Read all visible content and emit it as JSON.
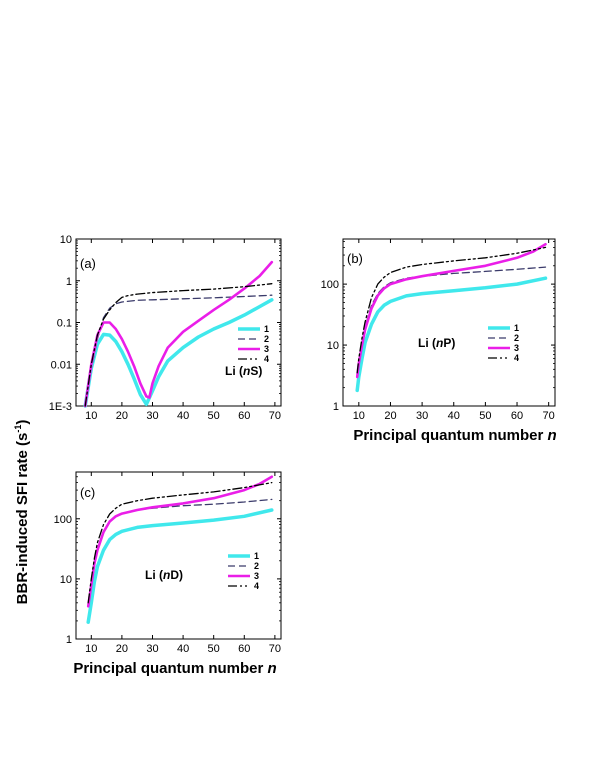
{
  "ylabel": {
    "main": "BBR-induced SFI rate (s",
    "sup": "-1",
    "tail": ")"
  },
  "series_styles": [
    {
      "name": "1",
      "color": "#40e8ec",
      "width": 3.5,
      "dash": ""
    },
    {
      "name": "2",
      "color": "#3a3a6a",
      "width": 1.3,
      "dash": "7,4"
    },
    {
      "name": "3",
      "color": "#ea1ee8",
      "width": 2.6,
      "dash": ""
    },
    {
      "name": "4",
      "color": "#000000",
      "width": 1.3,
      "dash": "9,3,2,3,2,3"
    }
  ],
  "chart_data": [
    {
      "id": "a",
      "type": "line",
      "label": "(a)",
      "species": {
        "prefix": "Li (",
        "italic": "n",
        "suffix": "S)"
      },
      "x_scale": "linear",
      "y_scale": "log",
      "xlim": [
        5,
        72
      ],
      "ylim": [
        0.001,
        10
      ],
      "xticks": [
        10,
        20,
        30,
        40,
        50,
        60,
        70
      ],
      "yticks": [
        0.001,
        0.01,
        0.1,
        1,
        10
      ],
      "ytick_labels": [
        "1E-3",
        "0.01",
        "0.1",
        "1",
        "10"
      ],
      "xlabel": {
        "text": "",
        "italic": ""
      },
      "series": [
        {
          "name": "1",
          "x": [
            8,
            10,
            12,
            14,
            16,
            18,
            20,
            22,
            24,
            26,
            28,
            30,
            32,
            35,
            40,
            45,
            50,
            55,
            60,
            65,
            69
          ],
          "y": [
            0.001,
            0.008,
            0.03,
            0.052,
            0.05,
            0.035,
            0.02,
            0.01,
            0.0045,
            0.0019,
            0.0011,
            0.0023,
            0.005,
            0.012,
            0.025,
            0.045,
            0.07,
            0.1,
            0.15,
            0.24,
            0.35
          ]
        },
        {
          "name": "2",
          "x": [
            8,
            10,
            12,
            14,
            16,
            18,
            20,
            25,
            30,
            40,
            50,
            60,
            69
          ],
          "y": [
            0.001,
            0.008,
            0.04,
            0.13,
            0.22,
            0.28,
            0.31,
            0.34,
            0.35,
            0.37,
            0.39,
            0.42,
            0.45
          ]
        },
        {
          "name": "3",
          "x": [
            8,
            10,
            12,
            14,
            16,
            18,
            20,
            22,
            24,
            26,
            28,
            29,
            30,
            32,
            35,
            40,
            45,
            50,
            55,
            60,
            65,
            69
          ],
          "y": [
            0.001,
            0.01,
            0.05,
            0.1,
            0.1,
            0.07,
            0.04,
            0.02,
            0.009,
            0.0035,
            0.0017,
            0.0016,
            0.0035,
            0.009,
            0.025,
            0.06,
            0.11,
            0.2,
            0.35,
            0.65,
            1.3,
            2.8
          ]
        },
        {
          "name": "4",
          "x": [
            8,
            10,
            12,
            14,
            16,
            18,
            20,
            22,
            25,
            30,
            40,
            50,
            60,
            69
          ],
          "y": [
            0.001,
            0.01,
            0.05,
            0.12,
            0.2,
            0.3,
            0.4,
            0.44,
            0.48,
            0.52,
            0.58,
            0.63,
            0.72,
            0.85
          ]
        }
      ]
    },
    {
      "id": "b",
      "type": "line",
      "label": "(b)",
      "species": {
        "prefix": "Li (",
        "italic": "n",
        "suffix": "P)"
      },
      "x_scale": "linear",
      "y_scale": "log",
      "xlim": [
        5,
        72
      ],
      "ylim": [
        1,
        550
      ],
      "xticks": [
        10,
        20,
        30,
        40,
        50,
        60,
        70
      ],
      "yticks": [
        1,
        10,
        100
      ],
      "ytick_labels": [
        "1",
        "10",
        "100"
      ],
      "xlabel": {
        "text": "Principal quantum number ",
        "italic": "n"
      },
      "series": [
        {
          "name": "1",
          "x": [
            9.5,
            10,
            11,
            12,
            14,
            16,
            18,
            20,
            25,
            30,
            40,
            50,
            60,
            69
          ],
          "y": [
            1.8,
            3,
            6,
            11,
            22,
            35,
            45,
            52,
            64,
            70,
            78,
            87,
            100,
            125
          ]
        },
        {
          "name": "2",
          "x": [
            9.5,
            10,
            11,
            12,
            14,
            16,
            18,
            20,
            25,
            30,
            40,
            50,
            60,
            69
          ],
          "y": [
            3,
            5,
            11,
            20,
            45,
            70,
            90,
            105,
            125,
            135,
            150,
            162,
            175,
            190
          ]
        },
        {
          "name": "3",
          "x": [
            9.5,
            10,
            11,
            12,
            14,
            16,
            18,
            20,
            25,
            30,
            40,
            50,
            60,
            65,
            69
          ],
          "y": [
            3,
            5,
            10,
            18,
            40,
            65,
            85,
            100,
            120,
            135,
            165,
            200,
            270,
            340,
            450
          ]
        },
        {
          "name": "4",
          "x": [
            9.5,
            10,
            11,
            12,
            14,
            16,
            18,
            20,
            25,
            30,
            40,
            50,
            60,
            69
          ],
          "y": [
            3.5,
            6,
            13,
            24,
            60,
            100,
            130,
            155,
            190,
            210,
            240,
            270,
            320,
            400
          ]
        }
      ]
    },
    {
      "id": "c",
      "type": "line",
      "label": "(c)",
      "species": {
        "prefix": "Li (",
        "italic": "n",
        "suffix": "D)"
      },
      "x_scale": "linear",
      "y_scale": "log",
      "xlim": [
        5,
        72
      ],
      "ylim": [
        1,
        600
      ],
      "xticks": [
        10,
        20,
        30,
        40,
        50,
        60,
        70
      ],
      "yticks": [
        1,
        10,
        100
      ],
      "ytick_labels": [
        "1",
        "10",
        "100"
      ],
      "xlabel": {
        "text": "Principal quantum number ",
        "italic": "n"
      },
      "series": [
        {
          "name": "1",
          "x": [
            9,
            10,
            11,
            12,
            14,
            16,
            18,
            20,
            25,
            30,
            40,
            50,
            60,
            69
          ],
          "y": [
            1.9,
            4,
            9,
            16,
            30,
            45,
            55,
            62,
            72,
            77,
            85,
            95,
            110,
            140
          ]
        },
        {
          "name": "2",
          "x": [
            9,
            10,
            11,
            12,
            14,
            16,
            18,
            20,
            25,
            30,
            40,
            50,
            60,
            69
          ],
          "y": [
            3.5,
            8,
            18,
            30,
            60,
            90,
            110,
            122,
            140,
            150,
            165,
            175,
            190,
            210
          ]
        },
        {
          "name": "3",
          "x": [
            9,
            10,
            11,
            12,
            14,
            16,
            18,
            20,
            25,
            30,
            40,
            50,
            60,
            65,
            69
          ],
          "y": [
            3.5,
            8,
            18,
            30,
            60,
            90,
            110,
            122,
            140,
            155,
            180,
            220,
            300,
            380,
            500
          ]
        },
        {
          "name": "4",
          "x": [
            9,
            10,
            11,
            12,
            14,
            16,
            18,
            20,
            25,
            30,
            40,
            50,
            60,
            69
          ],
          "y": [
            4,
            10,
            22,
            40,
            80,
            120,
            150,
            175,
            200,
            220,
            250,
            280,
            330,
            400
          ]
        }
      ]
    }
  ]
}
